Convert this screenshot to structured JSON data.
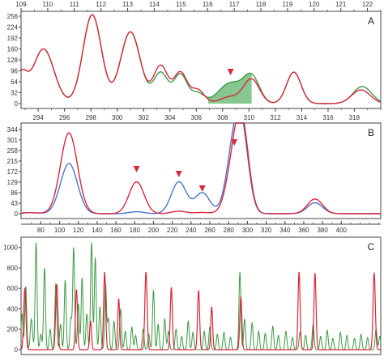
{
  "colors": {
    "red": "#d9283c",
    "green": "#3b9a43",
    "green_fill": "#5fb46a",
    "blue": "#4a74c9",
    "axis": "#444444",
    "text": "#333333"
  },
  "chart_data": [
    {
      "type": "line",
      "panel_label": "A",
      "top_axis": {
        "labels": [
          "109",
          "110",
          "111",
          "112",
          "113",
          "114",
          "115",
          "116",
          "117",
          "118",
          "119",
          "120",
          "121",
          "122"
        ],
        "min": 109,
        "max": 122.5
      },
      "bottom_axis": {
        "labels": [
          "294",
          "296",
          "298",
          "300",
          "302",
          "304",
          "306",
          "308",
          "310",
          "312",
          "314",
          "316",
          "318"
        ],
        "min": 292.7,
        "max": 320
      },
      "y_axis": {
        "labels": [
          "256",
          "224",
          "192",
          "160",
          "128",
          "96",
          "64",
          "32",
          "0"
        ],
        "values": [
          256,
          224,
          192,
          160,
          128,
          96,
          64,
          32,
          0
        ],
        "min": 0,
        "max": 270
      },
      "arrows_x": [
        308.6
      ],
      "series": [
        {
          "color": "red",
          "peaks": [
            [
              292.7,
              80,
              0.45
            ],
            [
              294.4,
              160,
              0.8
            ],
            [
              298.1,
              260,
              0.7
            ],
            [
              301,
              210,
              0.75
            ],
            [
              303.3,
              110,
              0.55
            ],
            [
              304.8,
              90,
              0.5
            ],
            [
              306.1,
              40,
              0.5
            ],
            [
              308.6,
              20,
              0.8
            ],
            [
              310.2,
              70,
              0.6
            ],
            [
              313.4,
              92,
              0.55
            ],
            [
              318.5,
              40,
              0.7
            ]
          ]
        },
        {
          "color": "green",
          "peaks": [
            [
              292.7,
              80,
              0.45
            ],
            [
              294.4,
              160,
              0.8
            ],
            [
              298.1,
              260,
              0.7
            ],
            [
              301,
              210,
              0.75
            ],
            [
              303.3,
              90,
              0.55
            ],
            [
              304.8,
              85,
              0.5
            ],
            [
              306.1,
              30,
              0.5
            ],
            [
              308.6,
              60,
              0.9
            ],
            [
              310.2,
              75,
              0.6
            ],
            [
              313.4,
              92,
              0.55
            ],
            [
              318.6,
              50,
              0.7
            ]
          ]
        }
      ],
      "shaded_peak": {
        "center": 308.6,
        "from": 306.9,
        "to": 310.2,
        "series_color": "green"
      }
    },
    {
      "type": "line",
      "panel_label": "B",
      "y_axis": {
        "labels": [
          "344",
          "301",
          "258",
          "215",
          "172",
          "129",
          "86",
          "43",
          "0"
        ],
        "values": [
          344,
          301,
          258,
          215,
          172,
          129,
          86,
          43,
          0
        ],
        "min": 0,
        "max": 370
      },
      "arrows_x": [
        182,
        227,
        252,
        286
      ],
      "series": [
        {
          "color": "red",
          "peaks": [
            [
              68,
              4,
              10
            ],
            [
              110,
              330,
              9
            ],
            [
              182,
              130,
              8
            ],
            [
              227,
              10,
              8
            ],
            [
              252,
              5,
              8
            ],
            [
              286,
              210,
              8
            ],
            [
              295,
              290,
              7
            ],
            [
              372,
              60,
              8
            ]
          ]
        },
        {
          "color": "blue",
          "peaks": [
            [
              68,
              4,
              10
            ],
            [
              110,
              205,
              9
            ],
            [
              182,
              8,
              8
            ],
            [
              227,
              130,
              8
            ],
            [
              252,
              85,
              8
            ],
            [
              286,
              270,
              8
            ],
            [
              295,
              240,
              7
            ],
            [
              372,
              45,
              8
            ]
          ]
        }
      ]
    },
    {
      "type": "line",
      "panel_label": "C",
      "top_axis": {
        "labels": [
          "80",
          "100",
          "120",
          "140",
          "160",
          "180",
          "200",
          "220",
          "240",
          "260",
          "280",
          "300",
          "320",
          "340",
          "360",
          "380",
          "400"
        ],
        "min": 59,
        "max": 442
      },
      "y_axis": {
        "labels": [
          "1000",
          "800",
          "600",
          "400",
          "200",
          "0"
        ],
        "values": [
          1000,
          800,
          600,
          400,
          200,
          0
        ],
        "min": 0,
        "max": 1100
      },
      "series": [
        {
          "color": "red",
          "peaks": [
            [
              63,
              600,
              1.2
            ],
            [
              97,
              640,
              1.2
            ],
            [
              118,
              590,
              1.1
            ],
            [
              133,
              280,
              1
            ],
            [
              148,
              760,
              1.1
            ],
            [
              163,
              500,
              1
            ],
            [
              192,
              760,
              1.2
            ],
            [
              219,
              610,
              1.1
            ],
            [
              248,
              580,
              1.1
            ],
            [
              262,
              420,
              1
            ],
            [
              293,
              520,
              1.1
            ],
            [
              355,
              760,
              1.1
            ],
            [
              372,
              750,
              1.1
            ],
            [
              435,
              750,
              1.2
            ]
          ]
        },
        {
          "color": "green",
          "peaks": [
            [
              60,
              350,
              1
            ],
            [
              64,
              620,
              1
            ],
            [
              70,
              300,
              1.2
            ],
            [
              75,
              1050,
              1
            ],
            [
              80,
              150,
              1
            ],
            [
              84,
              800,
              1
            ],
            [
              90,
              200,
              1
            ],
            [
              96,
              650,
              1
            ],
            [
              101,
              250,
              1
            ],
            [
              106,
              680,
              1
            ],
            [
              112,
              300,
              1
            ],
            [
              115,
              1000,
              1
            ],
            [
              120,
              450,
              1
            ],
            [
              124,
              700,
              1
            ],
            [
              129,
              350,
              1
            ],
            [
              134,
              1050,
              1
            ],
            [
              138,
              900,
              1
            ],
            [
              143,
              420,
              1
            ],
            [
              149,
              650,
              1
            ],
            [
              152,
              300,
              1
            ],
            [
              158,
              280,
              1
            ],
            [
              165,
              400,
              1
            ],
            [
              170,
              180,
              1
            ],
            [
              177,
              220,
              1
            ],
            [
              181,
              140,
              1
            ],
            [
              189,
              200,
              1
            ],
            [
              195,
              150,
              1
            ],
            [
              200,
              580,
              1
            ],
            [
              205,
              250,
              1
            ],
            [
              212,
              300,
              1
            ],
            [
              216,
              180,
              1
            ],
            [
              224,
              200,
              1
            ],
            [
              230,
              130,
              1
            ],
            [
              237,
              280,
              1
            ],
            [
              242,
              170,
              1
            ],
            [
              254,
              180,
              1
            ],
            [
              260,
              220,
              1
            ],
            [
              268,
              150,
              1
            ],
            [
              275,
              170,
              1
            ],
            [
              282,
              120,
              1
            ],
            [
              292,
              760,
              1
            ],
            [
              297,
              300,
              1
            ],
            [
              305,
              260,
              1
            ],
            [
              312,
              180,
              1
            ],
            [
              319,
              160,
              1
            ],
            [
              327,
              230,
              1
            ],
            [
              333,
              140,
              1
            ],
            [
              341,
              180,
              1
            ],
            [
              348,
              120,
              1
            ],
            [
              356,
              170,
              1
            ],
            [
              362,
              140,
              1
            ],
            [
              370,
              250,
              1
            ],
            [
              378,
              130,
              1
            ],
            [
              385,
              190,
              1
            ],
            [
              391,
              110,
              1
            ],
            [
              399,
              170,
              1
            ],
            [
              406,
              140,
              1
            ],
            [
              414,
              110,
              1
            ],
            [
              421,
              150,
              1
            ],
            [
              428,
              120,
              1
            ],
            [
              437,
              200,
              1
            ],
            [
              441,
              130,
              1
            ]
          ]
        }
      ]
    }
  ]
}
